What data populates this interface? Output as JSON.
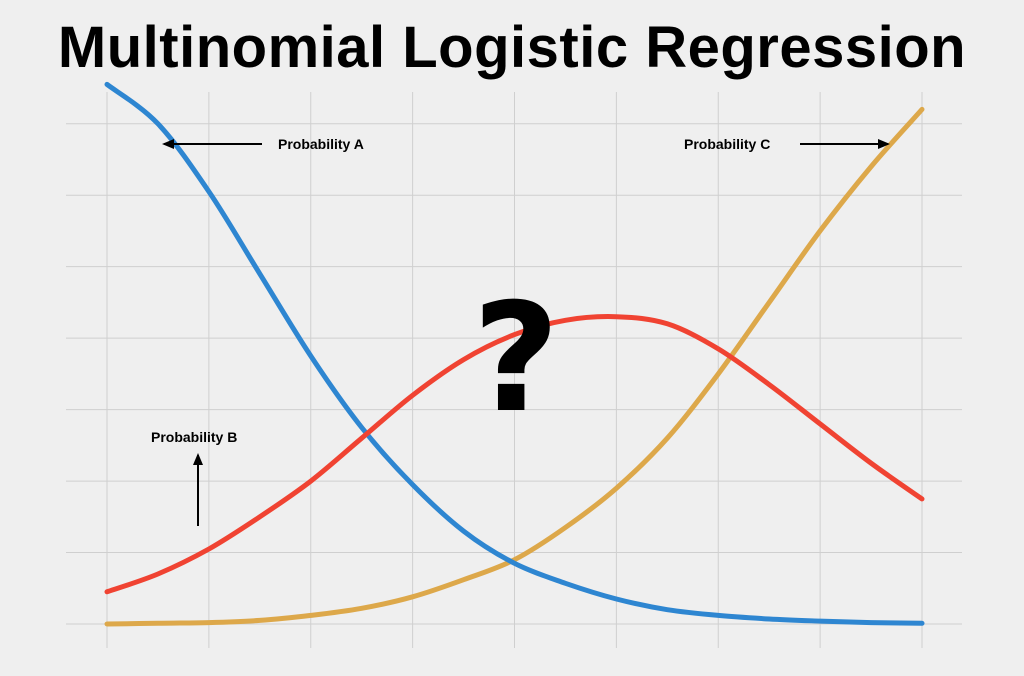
{
  "title": "Multinomial Logistic Regression",
  "chart_data": {
    "type": "line",
    "title": "Multinomial Logistic Regression",
    "xlabel": "",
    "ylabel": "",
    "grid": true,
    "xlim": [
      0,
      8
    ],
    "ylim": [
      0,
      7.5
    ],
    "x": [
      0,
      0.5,
      1,
      1.5,
      2,
      2.5,
      3,
      3.5,
      4,
      4.5,
      5,
      5.5,
      6,
      6.5,
      7,
      7.5,
      8
    ],
    "series": [
      {
        "name": "Probability A",
        "color": "#2e86d1",
        "values": [
          7.55,
          7.0,
          6.05,
          4.9,
          3.75,
          2.75,
          1.95,
          1.3,
          0.85,
          0.57,
          0.35,
          0.2,
          0.12,
          0.07,
          0.04,
          0.02,
          0.01
        ]
      },
      {
        "name": "Probability B",
        "color": "#f04332",
        "values": [
          0.45,
          0.7,
          1.05,
          1.5,
          2.0,
          2.6,
          3.2,
          3.7,
          4.05,
          4.25,
          4.3,
          4.2,
          3.85,
          3.35,
          2.8,
          2.25,
          1.75
        ]
      },
      {
        "name": "Probability C",
        "color": "#dda84a",
        "values": [
          0.0,
          0.01,
          0.02,
          0.05,
          0.12,
          0.22,
          0.38,
          0.62,
          0.9,
          1.35,
          1.9,
          2.6,
          3.5,
          4.5,
          5.5,
          6.4,
          7.2
        ]
      }
    ],
    "annotations": [
      {
        "text": "Probability A",
        "arrow": "left"
      },
      {
        "text": "Probability B",
        "arrow": "up"
      },
      {
        "text": "Probability C",
        "arrow": "right"
      },
      {
        "text": "?"
      }
    ]
  }
}
